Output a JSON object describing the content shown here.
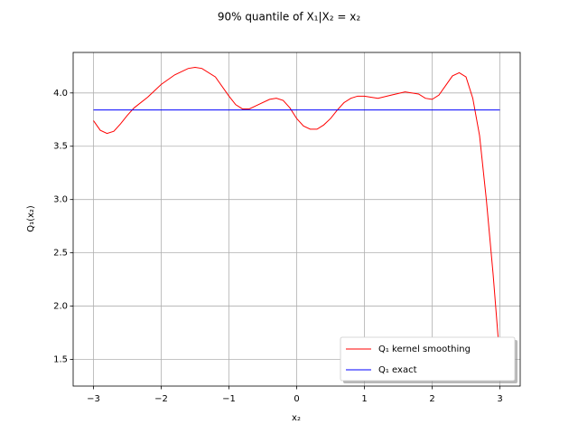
{
  "chart_data": {
    "type": "line",
    "title": "90% quantile of X₁|X₂ = x₂",
    "x_label": "x₂",
    "y_label": "Q₁(x₂)",
    "xlim": [
      -3.3,
      3.3
    ],
    "ylim": [
      1.25,
      4.38
    ],
    "xticks": [
      {
        "value": -3,
        "label": "−3"
      },
      {
        "value": -2,
        "label": "−2"
      },
      {
        "value": -1,
        "label": "−1"
      },
      0,
      1,
      2,
      3
    ],
    "yticks": [
      1.5,
      {
        "value": 2,
        "label": "2.0"
      },
      2.5,
      {
        "value": 3,
        "label": "3.0"
      },
      3.5,
      {
        "value": 4,
        "label": "4.0"
      }
    ],
    "grid": true,
    "legend": "lower right",
    "series": [
      {
        "name": "Q₁ kernel smoothing",
        "color": "#ff0000",
        "x": [
          -3,
          -2.9,
          -2.8,
          -2.7,
          -2.6,
          -2.5,
          -2.4,
          -2.2,
          -2.0,
          -1.8,
          -1.6,
          -1.5,
          -1.4,
          -1.2,
          -1.0,
          -0.9,
          -0.8,
          -0.7,
          -0.6,
          -0.4,
          -0.3,
          -0.2,
          -0.1,
          0,
          0.1,
          0.2,
          0.3,
          0.4,
          0.5,
          0.6,
          0.7,
          0.8,
          0.9,
          1.0,
          1.2,
          1.4,
          1.6,
          1.8,
          1.9,
          2.0,
          2.1,
          2.2,
          2.3,
          2.4,
          2.5,
          2.6,
          2.7,
          2.8,
          2.9,
          3.0
        ],
        "values": [
          3.74,
          3.65,
          3.62,
          3.64,
          3.71,
          3.79,
          3.86,
          3.96,
          4.08,
          4.17,
          4.23,
          4.24,
          4.23,
          4.15,
          3.97,
          3.89,
          3.85,
          3.85,
          3.88,
          3.94,
          3.95,
          3.93,
          3.86,
          3.76,
          3.69,
          3.66,
          3.66,
          3.7,
          3.76,
          3.84,
          3.91,
          3.95,
          3.97,
          3.97,
          3.95,
          3.98,
          4.01,
          3.99,
          3.95,
          3.94,
          3.98,
          4.07,
          4.16,
          4.19,
          4.15,
          3.95,
          3.6,
          3.0,
          2.3,
          1.5
        ]
      },
      {
        "name": "Q₁ exact",
        "color": "#0000ff",
        "x": [
          -3,
          3
        ],
        "values": [
          3.84,
          3.84
        ]
      }
    ]
  }
}
